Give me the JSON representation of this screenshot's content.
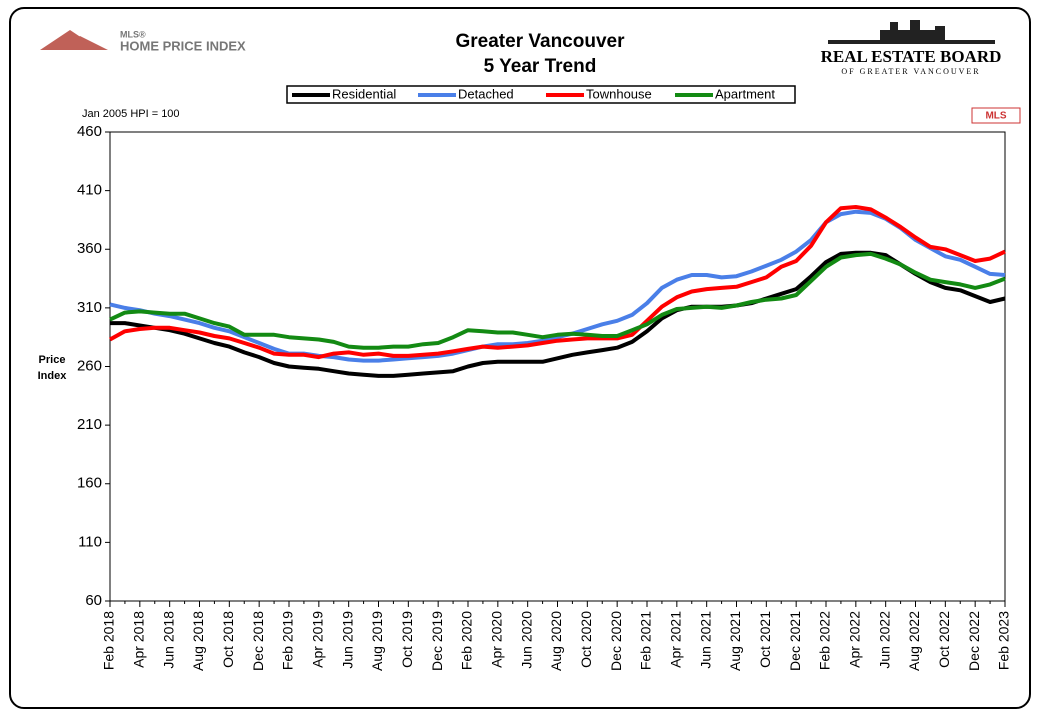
{
  "chart_data": {
    "type": "line",
    "title": [
      "Greater Vancouver",
      "5 Year Trend"
    ],
    "note": "Jan 2005 HPI = 100",
    "y_label": [
      "Price",
      "Index"
    ],
    "categories": [
      "Feb 2018",
      null,
      "Apr 2018",
      null,
      "Jun 2018",
      null,
      "Aug 2018",
      null,
      "Oct 2018",
      null,
      "Dec 2018",
      null,
      "Feb 2019",
      null,
      "Apr 2019",
      null,
      "Jun 2019",
      null,
      "Aug 2019",
      null,
      "Oct 2019",
      null,
      "Dec 2019",
      null,
      "Feb 2020",
      null,
      "Apr 2020",
      null,
      "Jun 2020",
      null,
      "Aug 2020",
      null,
      "Oct 2020",
      null,
      "Dec 2020",
      null,
      "Feb 2021",
      null,
      "Apr 2021",
      null,
      "Jun 2021",
      null,
      "Aug 2021",
      null,
      "Oct 2021",
      null,
      "Dec 2021",
      null,
      "Feb 2022",
      null,
      "Apr 2022",
      null,
      "Jun 2022",
      null,
      "Aug 2022",
      null,
      "Oct 2022",
      null,
      "Dec 2022",
      null,
      "Feb 2023"
    ],
    "series": [
      {
        "name": "Residential",
        "color": "#000000",
        "values": [
          297,
          297,
          295,
          293,
          291,
          288,
          284,
          280,
          277,
          272,
          268,
          263,
          260,
          259,
          258,
          256,
          254,
          253,
          252,
          252,
          253,
          254,
          255,
          256,
          260,
          263,
          264,
          264,
          264,
          264,
          267,
          270,
          272,
          274,
          276,
          281,
          290,
          301,
          308,
          311,
          311,
          311,
          312,
          314,
          318,
          322,
          326,
          337,
          349,
          356,
          357,
          357,
          355,
          347,
          339,
          332,
          327,
          325,
          320,
          315,
          318
        ]
      },
      {
        "name": "Detached",
        "color": "#4a7fe8",
        "values": [
          313,
          310,
          308,
          305,
          303,
          300,
          297,
          293,
          290,
          285,
          280,
          275,
          271,
          271,
          269,
          268,
          266,
          265,
          265,
          266,
          267,
          268,
          269,
          271,
          274,
          277,
          279,
          279,
          280,
          282,
          285,
          288,
          292,
          296,
          299,
          304,
          314,
          327,
          334,
          338,
          338,
          336,
          337,
          341,
          346,
          351,
          358,
          368,
          383,
          390,
          392,
          391,
          386,
          378,
          368,
          361,
          354,
          351,
          345,
          339,
          338
        ]
      },
      {
        "name": "Townhouse",
        "color": "#ff0000",
        "values": [
          283,
          290,
          292,
          293,
          293,
          291,
          289,
          286,
          284,
          280,
          276,
          271,
          270,
          270,
          268,
          271,
          272,
          270,
          271,
          269,
          269,
          270,
          271,
          273,
          275,
          277,
          276,
          277,
          278,
          280,
          282,
          283,
          284,
          284,
          284,
          287,
          299,
          311,
          319,
          324,
          326,
          327,
          328,
          332,
          336,
          345,
          350,
          363,
          383,
          395,
          396,
          394,
          387,
          379,
          370,
          362,
          360,
          355,
          350,
          352,
          358
        ]
      },
      {
        "name": "Apartment",
        "color": "#138a13",
        "values": [
          300,
          306,
          307,
          306,
          305,
          305,
          301,
          297,
          294,
          287,
          287,
          287,
          285,
          284,
          283,
          281,
          277,
          276,
          276,
          277,
          277,
          279,
          280,
          285,
          291,
          290,
          289,
          289,
          287,
          285,
          287,
          288,
          287,
          286,
          286,
          291,
          296,
          304,
          309,
          310,
          311,
          310,
          312,
          315,
          317,
          318,
          321,
          333,
          345,
          353,
          355,
          356,
          352,
          347,
          340,
          334,
          332,
          330,
          327,
          330,
          335
        ]
      }
    ],
    "ylim": [
      60,
      460
    ],
    "yticks": [
      60,
      110,
      160,
      210,
      260,
      310,
      360,
      410,
      460
    ],
    "grid": false,
    "legend": "top"
  },
  "branding": {
    "left_logo": [
      "MLS®",
      "HOME PRICE INDEX"
    ],
    "right_logo": [
      "REAL ESTATE BOARD",
      "OF GREATER VANCOUVER"
    ],
    "badge": "MLS"
  }
}
